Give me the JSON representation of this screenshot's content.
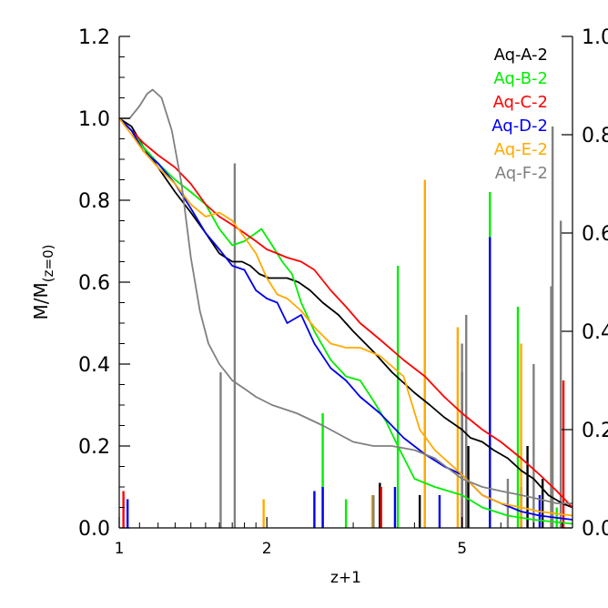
{
  "chart_data": {
    "type": "line",
    "xlabel": "z+1",
    "ylabel": "M/M",
    "ylabel_subscript": "(z=0)",
    "x_scale": "log",
    "xlim": [
      1,
      8.4
    ],
    "ylim": [
      0,
      1.2
    ],
    "y2lim": [
      0,
      1.0
    ],
    "x_ticks": [
      1,
      2,
      5
    ],
    "x_tick_labels": [
      "1",
      "2",
      "5"
    ],
    "y_ticks": [
      0.0,
      0.2,
      0.4,
      0.6,
      0.8,
      1.0,
      1.2
    ],
    "y_tick_labels": [
      "0.0",
      "0.2",
      "0.4",
      "0.6",
      "0.8",
      "1.0",
      "1.2"
    ],
    "y2_ticks": [
      0.0,
      0.2,
      0.4,
      0.6,
      0.8,
      1.0
    ],
    "y2_tick_labels": [
      "0.0",
      "0.2",
      "0.4",
      "0.6",
      "0.8",
      "1.0"
    ],
    "legend_position": "top-right",
    "series": [
      {
        "name": "Aq-A-2",
        "color": "#000000",
        "points": [
          [
            1.0,
            1.0
          ],
          [
            1.06,
            0.98
          ],
          [
            1.12,
            0.93
          ],
          [
            1.2,
            0.88
          ],
          [
            1.3,
            0.82
          ],
          [
            1.4,
            0.77
          ],
          [
            1.5,
            0.72
          ],
          [
            1.6,
            0.67
          ],
          [
            1.7,
            0.65
          ],
          [
            1.78,
            0.65
          ],
          [
            1.85,
            0.64
          ],
          [
            1.93,
            0.62
          ],
          [
            2.02,
            0.61
          ],
          [
            2.1,
            0.61
          ],
          [
            2.2,
            0.61
          ],
          [
            2.32,
            0.6
          ],
          [
            2.45,
            0.58
          ],
          [
            2.6,
            0.55
          ],
          [
            2.8,
            0.52
          ],
          [
            3.0,
            0.48
          ],
          [
            3.3,
            0.43
          ],
          [
            3.6,
            0.38
          ],
          [
            4.0,
            0.33
          ],
          [
            4.3,
            0.3
          ],
          [
            4.6,
            0.27
          ],
          [
            5.0,
            0.24
          ],
          [
            5.2,
            0.22
          ],
          [
            5.5,
            0.21
          ],
          [
            5.8,
            0.19
          ],
          [
            6.2,
            0.17
          ],
          [
            6.6,
            0.14
          ],
          [
            7.0,
            0.12
          ],
          [
            7.5,
            0.08
          ],
          [
            8.0,
            0.06
          ],
          [
            8.4,
            0.05
          ]
        ],
        "spikes": [
          [
            3.4,
            0.11
          ],
          [
            4.1,
            0.08
          ],
          [
            5.0,
            0.38
          ],
          [
            5.15,
            0.2
          ],
          [
            6.8,
            0.2
          ],
          [
            7.3,
            0.12
          ]
        ]
      },
      {
        "name": "Aq-B-2",
        "color": "#00ee00",
        "points": [
          [
            1.0,
            1.0
          ],
          [
            1.06,
            0.97
          ],
          [
            1.12,
            0.93
          ],
          [
            1.2,
            0.89
          ],
          [
            1.3,
            0.85
          ],
          [
            1.4,
            0.82
          ],
          [
            1.5,
            0.79
          ],
          [
            1.6,
            0.73
          ],
          [
            1.7,
            0.69
          ],
          [
            1.8,
            0.7
          ],
          [
            1.9,
            0.72
          ],
          [
            1.95,
            0.73
          ],
          [
            2.05,
            0.69
          ],
          [
            2.15,
            0.65
          ],
          [
            2.25,
            0.62
          ],
          [
            2.35,
            0.55
          ],
          [
            2.5,
            0.48
          ],
          [
            2.7,
            0.41
          ],
          [
            2.9,
            0.37
          ],
          [
            3.1,
            0.36
          ],
          [
            3.3,
            0.31
          ],
          [
            3.5,
            0.26
          ],
          [
            3.7,
            0.2
          ],
          [
            4.0,
            0.12
          ],
          [
            4.4,
            0.1
          ],
          [
            5.0,
            0.08
          ],
          [
            5.5,
            0.05
          ],
          [
            6.2,
            0.03
          ],
          [
            7.0,
            0.02
          ],
          [
            8.4,
            0.01
          ]
        ],
        "spikes": [
          [
            2.6,
            0.28
          ],
          [
            2.9,
            0.07
          ],
          [
            3.7,
            0.64
          ],
          [
            4.2,
            0.7
          ],
          [
            5.1,
            0.22
          ],
          [
            5.7,
            0.82
          ],
          [
            6.5,
            0.54
          ],
          [
            7.8,
            0.05
          ]
        ]
      },
      {
        "name": "Aq-C-2",
        "color": "#ff0000",
        "points": [
          [
            1.0,
            1.0
          ],
          [
            1.06,
            0.97
          ],
          [
            1.12,
            0.94
          ],
          [
            1.2,
            0.91
          ],
          [
            1.3,
            0.88
          ],
          [
            1.4,
            0.84
          ],
          [
            1.5,
            0.79
          ],
          [
            1.6,
            0.76
          ],
          [
            1.7,
            0.74
          ],
          [
            1.8,
            0.72
          ],
          [
            1.9,
            0.7
          ],
          [
            2.0,
            0.68
          ],
          [
            2.1,
            0.67
          ],
          [
            2.2,
            0.66
          ],
          [
            2.35,
            0.65
          ],
          [
            2.5,
            0.63
          ],
          [
            2.7,
            0.58
          ],
          [
            2.9,
            0.54
          ],
          [
            3.1,
            0.5
          ],
          [
            3.4,
            0.46
          ],
          [
            3.8,
            0.41
          ],
          [
            4.2,
            0.37
          ],
          [
            4.6,
            0.32
          ],
          [
            5.0,
            0.28
          ],
          [
            5.5,
            0.24
          ],
          [
            6.0,
            0.21
          ],
          [
            6.6,
            0.17
          ],
          [
            7.2,
            0.13
          ],
          [
            7.8,
            0.09
          ],
          [
            8.4,
            0.05
          ]
        ],
        "spikes": [
          [
            1.02,
            0.09
          ],
          [
            3.42,
            0.1
          ],
          [
            5.0,
            0.07
          ],
          [
            8.05,
            0.36
          ]
        ]
      },
      {
        "name": "Aq-D-2",
        "color": "#0000ee",
        "points": [
          [
            1.0,
            1.0
          ],
          [
            1.06,
            0.97
          ],
          [
            1.12,
            0.92
          ],
          [
            1.2,
            0.89
          ],
          [
            1.3,
            0.84
          ],
          [
            1.4,
            0.78
          ],
          [
            1.5,
            0.72
          ],
          [
            1.6,
            0.68
          ],
          [
            1.7,
            0.64
          ],
          [
            1.8,
            0.63
          ],
          [
            1.9,
            0.58
          ],
          [
            2.0,
            0.56
          ],
          [
            2.1,
            0.55
          ],
          [
            2.2,
            0.5
          ],
          [
            2.35,
            0.52
          ],
          [
            2.5,
            0.45
          ],
          [
            2.7,
            0.39
          ],
          [
            2.9,
            0.36
          ],
          [
            3.1,
            0.32
          ],
          [
            3.4,
            0.28
          ],
          [
            3.8,
            0.22
          ],
          [
            4.2,
            0.18
          ],
          [
            4.6,
            0.15
          ],
          [
            5.0,
            0.13
          ],
          [
            5.5,
            0.08
          ],
          [
            6.0,
            0.06
          ],
          [
            6.6,
            0.04
          ],
          [
            7.2,
            0.03
          ],
          [
            8.4,
            0.02
          ]
        ],
        "spikes": [
          [
            1.04,
            0.07
          ],
          [
            2.5,
            0.09
          ],
          [
            2.6,
            0.1
          ],
          [
            3.65,
            0.1
          ],
          [
            4.5,
            0.08
          ],
          [
            5.7,
            0.71
          ],
          [
            6.6,
            0.1
          ],
          [
            7.2,
            0.08
          ]
        ]
      },
      {
        "name": "Aq-E-2",
        "color": "#ffaa00",
        "points": [
          [
            1.0,
            1.0
          ],
          [
            1.06,
            0.96
          ],
          [
            1.12,
            0.92
          ],
          [
            1.2,
            0.88
          ],
          [
            1.3,
            0.84
          ],
          [
            1.4,
            0.79
          ],
          [
            1.5,
            0.76
          ],
          [
            1.6,
            0.77
          ],
          [
            1.7,
            0.75
          ],
          [
            1.8,
            0.71
          ],
          [
            1.9,
            0.67
          ],
          [
            2.0,
            0.61
          ],
          [
            2.1,
            0.57
          ],
          [
            2.2,
            0.56
          ],
          [
            2.35,
            0.53
          ],
          [
            2.5,
            0.49
          ],
          [
            2.7,
            0.45
          ],
          [
            2.9,
            0.44
          ],
          [
            3.1,
            0.44
          ],
          [
            3.4,
            0.42
          ],
          [
            3.8,
            0.37
          ],
          [
            4.1,
            0.24
          ],
          [
            4.4,
            0.19
          ],
          [
            5.0,
            0.13
          ],
          [
            5.5,
            0.08
          ],
          [
            6.0,
            0.06
          ],
          [
            6.6,
            0.05
          ],
          [
            7.2,
            0.04
          ],
          [
            8.4,
            0.03
          ]
        ],
        "spikes": [
          [
            1.97,
            0.07
          ],
          [
            3.28,
            0.08
          ],
          [
            4.2,
            0.85
          ],
          [
            4.9,
            0.49
          ],
          [
            6.6,
            0.45
          ],
          [
            7.6,
            0.2
          ]
        ]
      },
      {
        "name": "Aq-F-2",
        "color": "#808080",
        "points": [
          [
            1.0,
            1.0
          ],
          [
            1.05,
            1.0
          ],
          [
            1.1,
            1.03
          ],
          [
            1.14,
            1.06
          ],
          [
            1.17,
            1.07
          ],
          [
            1.22,
            1.05
          ],
          [
            1.28,
            0.97
          ],
          [
            1.34,
            0.84
          ],
          [
            1.4,
            0.66
          ],
          [
            1.46,
            0.53
          ],
          [
            1.52,
            0.45
          ],
          [
            1.6,
            0.4
          ],
          [
            1.7,
            0.36
          ],
          [
            1.8,
            0.34
          ],
          [
            1.9,
            0.32
          ],
          [
            2.05,
            0.3
          ],
          [
            2.3,
            0.28
          ],
          [
            2.6,
            0.25
          ],
          [
            3.0,
            0.21
          ],
          [
            3.3,
            0.2
          ],
          [
            3.6,
            0.2
          ],
          [
            4.0,
            0.19
          ],
          [
            4.4,
            0.17
          ],
          [
            5.0,
            0.12
          ],
          [
            5.5,
            0.1
          ],
          [
            6.0,
            0.09
          ],
          [
            6.6,
            0.08
          ],
          [
            7.2,
            0.07
          ],
          [
            7.8,
            0.06
          ],
          [
            8.4,
            0.06
          ]
        ],
        "spikes": [
          [
            1.61,
            0.38
          ],
          [
            1.72,
            0.89
          ],
          [
            3.3,
            0.08
          ],
          [
            5.0,
            0.45
          ],
          [
            5.1,
            0.52
          ],
          [
            6.2,
            0.12
          ],
          [
            7.6,
            0.59
          ],
          [
            7.65,
            0.98
          ],
          [
            7.95,
            0.75
          ],
          [
            7.0,
            0.4
          ]
        ]
      }
    ]
  }
}
